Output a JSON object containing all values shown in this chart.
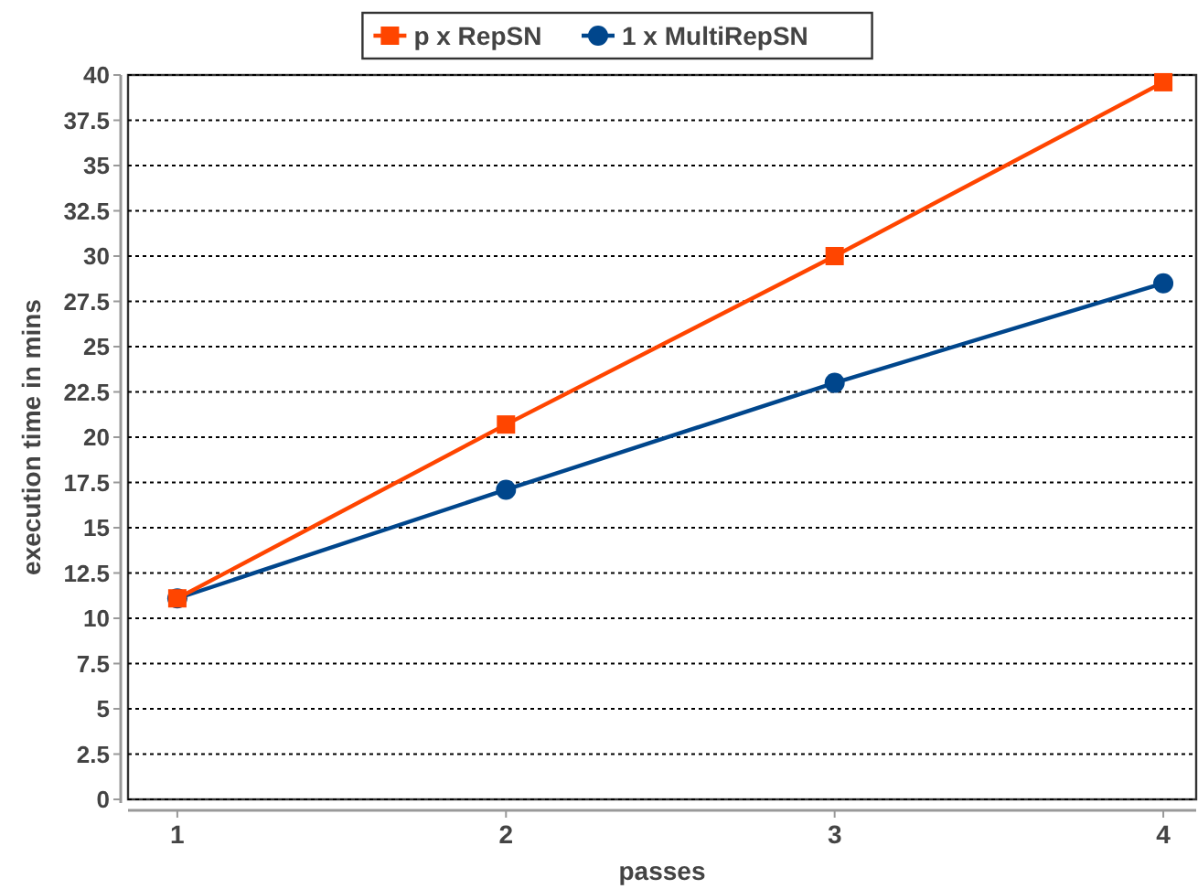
{
  "chart_data": {
    "type": "line",
    "xlabel": "passes",
    "ylabel": "execution time in mins",
    "x": [
      1,
      2,
      3,
      4
    ],
    "series": [
      {
        "name": "p x RepSN",
        "color": "#ff4500",
        "marker": "square",
        "values": [
          11.1,
          20.7,
          30.0,
          39.6
        ]
      },
      {
        "name": "1 x MultiRepSN",
        "color": "#00468c",
        "marker": "circle",
        "values": [
          11.1,
          17.1,
          23.0,
          28.5
        ]
      }
    ],
    "xlim": [
      0.85,
      4.1
    ],
    "xticks": [
      1,
      2,
      3,
      4
    ],
    "ylim": [
      0,
      40
    ],
    "yticks": [
      0,
      2.5,
      5,
      7.5,
      10,
      12.5,
      15,
      17.5,
      20,
      22.5,
      25,
      27.5,
      30,
      32.5,
      35,
      37.5,
      40
    ],
    "grid": "y",
    "legend": "top"
  }
}
